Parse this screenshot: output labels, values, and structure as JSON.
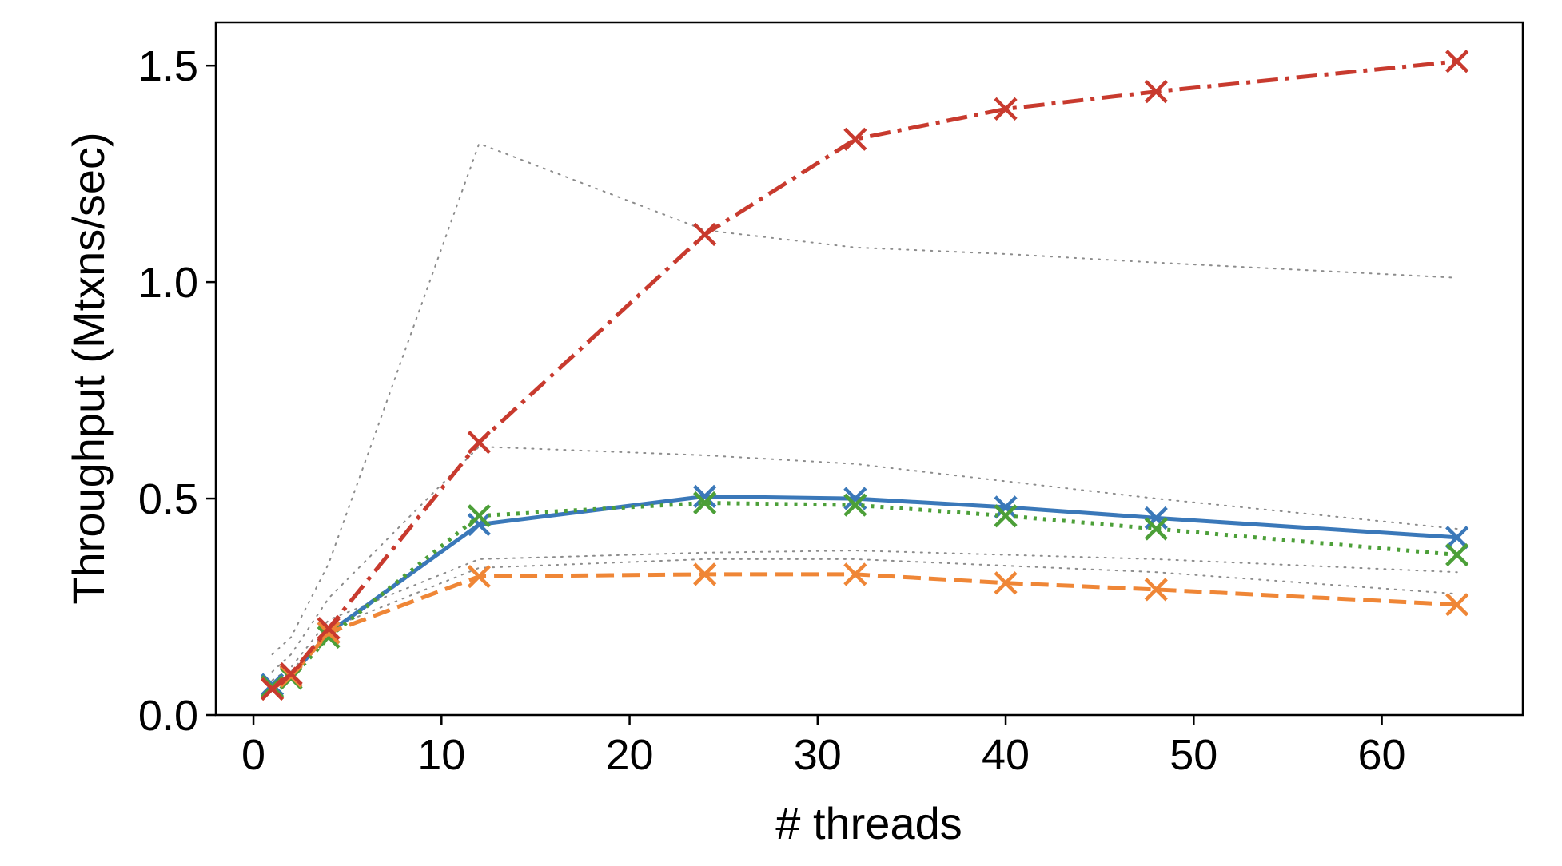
{
  "chart_data": {
    "type": "line",
    "title": "",
    "xlabel": "# threads",
    "ylabel": "Throughput (Mtxns/sec)",
    "xlim": [
      -2,
      67.5
    ],
    "ylim": [
      0,
      1.6
    ],
    "xticks": [
      0,
      10,
      20,
      30,
      40,
      50,
      60
    ],
    "xtick_labels": [
      "0",
      "10",
      "20",
      "30",
      "40",
      "50",
      "60"
    ],
    "yticks": [
      0,
      0.5,
      1.0,
      1.5
    ],
    "ytick_labels": [
      "0.0",
      "0.5",
      "1.0",
      "1.5"
    ],
    "grid": false,
    "legend": "none",
    "x": [
      1,
      2,
      4,
      12,
      24,
      32,
      40,
      48,
      64
    ],
    "series": [
      {
        "color": "#3a78b9",
        "linestyle": "solid",
        "marker": "x",
        "values": [
          0.07,
          0.09,
          0.19,
          0.44,
          0.505,
          0.5,
          0.48,
          0.455,
          0.41
        ]
      },
      {
        "color": "#4c9f38",
        "linestyle": "dotted",
        "marker": "x",
        "values": [
          0.065,
          0.085,
          0.18,
          0.46,
          0.49,
          0.485,
          0.46,
          0.43,
          0.37
        ]
      },
      {
        "color": "#ef8636",
        "linestyle": "dashed",
        "marker": "x",
        "values": [
          0.06,
          0.09,
          0.19,
          0.32,
          0.325,
          0.325,
          0.305,
          0.29,
          0.255
        ]
      },
      {
        "color": "#c83a2e",
        "linestyle": "dashdot",
        "marker": "x",
        "values": [
          0.06,
          0.095,
          0.2,
          0.63,
          1.11,
          1.33,
          1.4,
          1.44,
          1.51
        ]
      },
      {
        "color": "#8c8c8c",
        "linestyle": "dotted",
        "marker": "none",
        "values": [
          0.14,
          0.18,
          0.35,
          1.32,
          1.12,
          1.08,
          1.065,
          1.045,
          1.01
        ]
      },
      {
        "color": "#8c8c8c",
        "linestyle": "dotted",
        "marker": "none",
        "values": [
          0.1,
          0.14,
          0.27,
          0.62,
          0.6,
          0.58,
          0.54,
          0.5,
          0.43
        ]
      },
      {
        "color": "#8c8c8c",
        "linestyle": "dotted",
        "marker": "none",
        "values": [
          0.08,
          0.11,
          0.22,
          0.36,
          0.375,
          0.38,
          0.37,
          0.36,
          0.33
        ]
      },
      {
        "color": "#8c8c8c",
        "linestyle": "dotted",
        "marker": "none",
        "values": [
          0.07,
          0.1,
          0.2,
          0.34,
          0.36,
          0.36,
          0.345,
          0.33,
          0.28
        ]
      }
    ]
  }
}
